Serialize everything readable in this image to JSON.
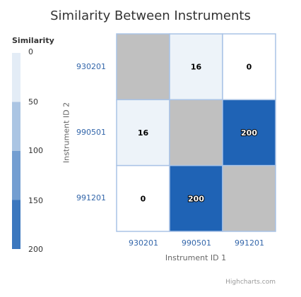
{
  "chart_data": {
    "type": "heatmap",
    "title": "Similarity Between Instruments",
    "xlabel": "Instrument ID 1",
    "ylabel": "Instrument ID 2",
    "x_categories": [
      "930201",
      "990501",
      "991201"
    ],
    "y_categories": [
      "930201",
      "990501",
      "991201"
    ],
    "cells": [
      {
        "x": "930201",
        "y": "930201",
        "value": null,
        "label": ""
      },
      {
        "x": "990501",
        "y": "930201",
        "value": 16,
        "label": "16"
      },
      {
        "x": "991201",
        "y": "930201",
        "value": 0,
        "label": "0"
      },
      {
        "x": "930201",
        "y": "990501",
        "value": 16,
        "label": "16"
      },
      {
        "x": "990501",
        "y": "990501",
        "value": null,
        "label": ""
      },
      {
        "x": "991201",
        "y": "990501",
        "value": 200,
        "label": "200"
      },
      {
        "x": "930201",
        "y": "991201",
        "value": 0,
        "label": "0"
      },
      {
        "x": "990501",
        "y": "991201",
        "value": 200,
        "label": "200"
      },
      {
        "x": "991201",
        "y": "991201",
        "value": null,
        "label": ""
      }
    ],
    "color_axis": {
      "title": "Similarity",
      "min": 0,
      "max": 200,
      "ticks": [
        "0",
        "50",
        "100",
        "150",
        "200"
      ],
      "min_color": "#ffffff",
      "max_color": "#1f63b5",
      "null_color": "#c0c0c0"
    },
    "legend_position": "left",
    "credits": "Highcharts.com"
  }
}
